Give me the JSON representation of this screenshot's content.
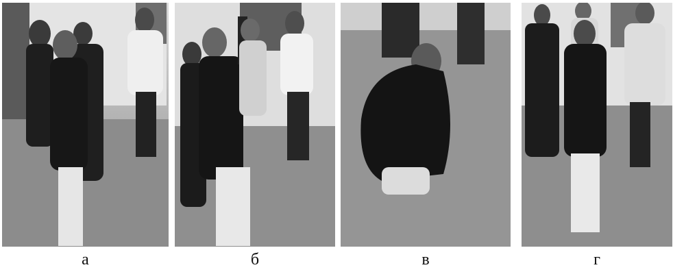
{
  "figure": {
    "panels": [
      {
        "label": "а"
      },
      {
        "label": "б"
      },
      {
        "label": "в"
      },
      {
        "label": "г"
      }
    ]
  }
}
